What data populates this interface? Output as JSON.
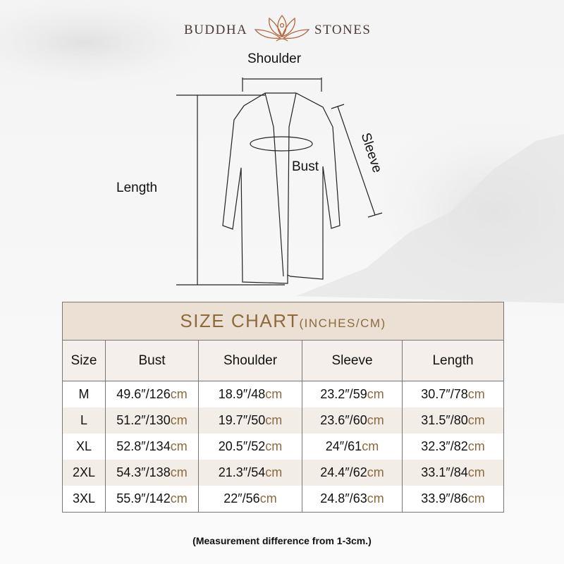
{
  "brand": {
    "left": "BUDDHA",
    "right": "STONES"
  },
  "diagram": {
    "shoulder": "Shoulder",
    "sleeve": "Sleeve",
    "bust": "Bust",
    "length": "Length"
  },
  "table": {
    "title": "SIZE CHART",
    "title_units": "(INCHES/CM)",
    "columns": [
      "Size",
      "Bust",
      "Shoulder",
      "Sleeve",
      "Length"
    ],
    "rows": [
      {
        "size": "M",
        "bust": [
          "49.6″/126",
          "cm"
        ],
        "shoulder": [
          "18.9″/48",
          "cm"
        ],
        "sleeve": [
          "23.2″/59",
          "cm"
        ],
        "length": [
          "30.7″/78",
          "cm"
        ]
      },
      {
        "size": "L",
        "bust": [
          "51.2″/130",
          "cm"
        ],
        "shoulder": [
          "19.7″/50",
          "cm"
        ],
        "sleeve": [
          "23.6″/60",
          "cm"
        ],
        "length": [
          "31.5″/80",
          "cm"
        ]
      },
      {
        "size": "XL",
        "bust": [
          "52.8″/134",
          "cm"
        ],
        "shoulder": [
          "20.5″/52",
          "cm"
        ],
        "sleeve": [
          "24″/61",
          "cm"
        ],
        "length": [
          "32.3″/82",
          "cm"
        ]
      },
      {
        "size": "2XL",
        "bust": [
          "54.3″/138",
          "cm"
        ],
        "shoulder": [
          "21.3″/54",
          "cm"
        ],
        "sleeve": [
          "24.4″/62",
          "cm"
        ],
        "length": [
          "33.1″/84",
          "cm"
        ]
      },
      {
        "size": "3XL",
        "bust": [
          "55.9″/142",
          "cm"
        ],
        "shoulder": [
          "22″/56",
          "cm"
        ],
        "sleeve": [
          "24.8″/63",
          "cm"
        ],
        "length": [
          "33.9″/86",
          "cm"
        ]
      }
    ]
  },
  "note": "(Measurement difference from 1-3cm.)",
  "colors": {
    "accent": "#8c6a3c",
    "header_bg": "#ece0d5",
    "logo": "#b5643a"
  }
}
